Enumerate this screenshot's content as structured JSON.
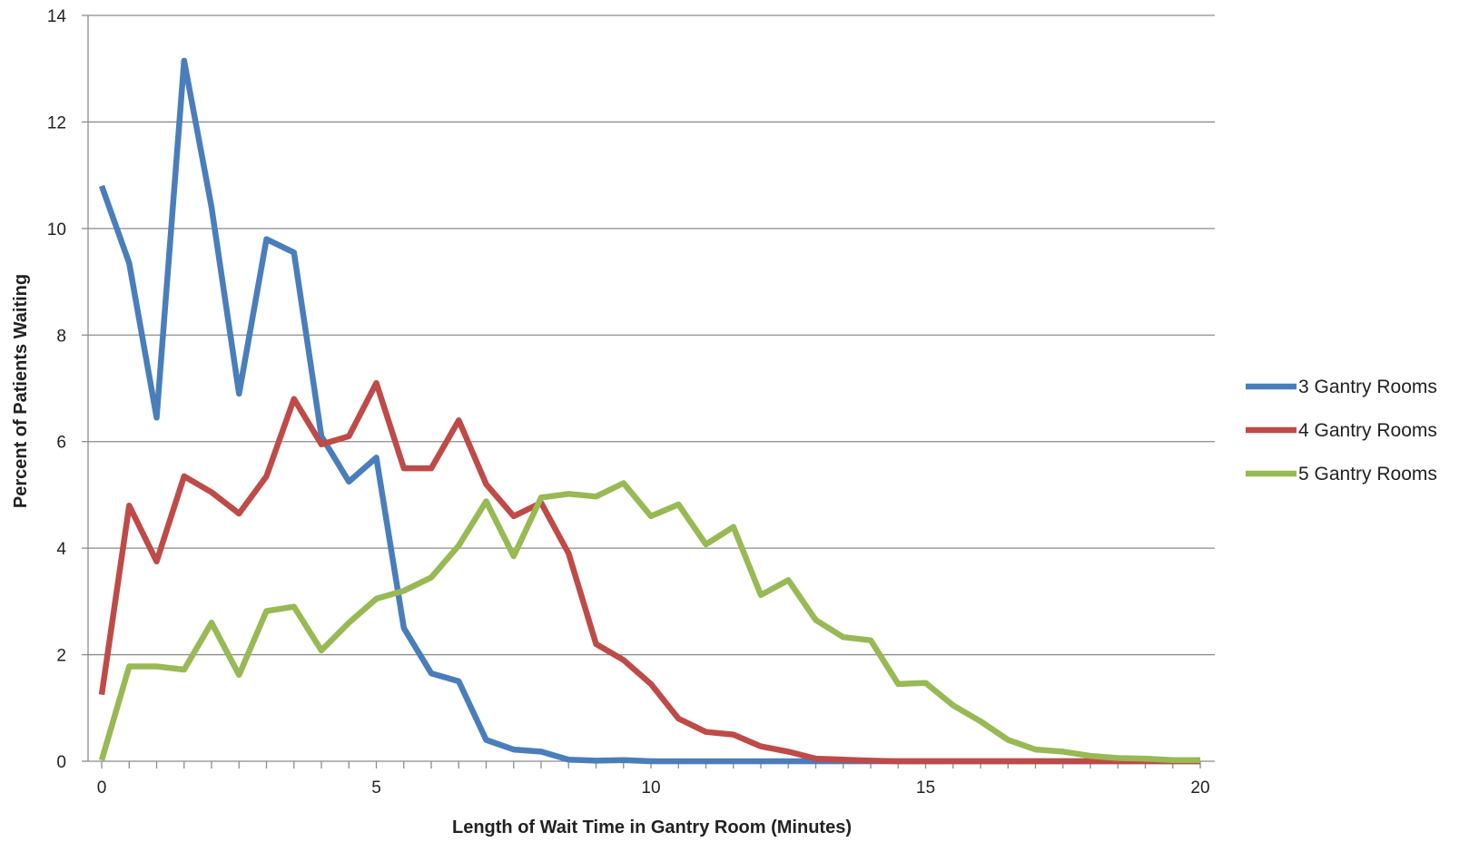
{
  "chart_data": {
    "type": "line",
    "title": "",
    "xlabel": "Length of Wait Time in Gantry Room (Minutes)",
    "ylabel": "Percent of Patients Waiting",
    "xlim": [
      0,
      20
    ],
    "ylim": [
      0,
      14
    ],
    "x_ticks": [
      "0",
      "5",
      "10",
      "15",
      "20"
    ],
    "y_ticks": [
      "0",
      "2",
      "4",
      "6",
      "8",
      "10",
      "12",
      "14"
    ],
    "grid": "horizontal",
    "legend_position": "right",
    "x": [
      0,
      0.5,
      1,
      1.5,
      2,
      2.5,
      3,
      3.5,
      4,
      4.5,
      5,
      5.5,
      6,
      6.5,
      7,
      7.5,
      8,
      8.5,
      9,
      9.5,
      10,
      10.5,
      11,
      11.5,
      12,
      12.5,
      13,
      13.5,
      14,
      14.5,
      15,
      15.5,
      16,
      16.5,
      17,
      17.5,
      18,
      18.5,
      19,
      19.5,
      20
    ],
    "series": [
      {
        "name": "3 Gantry Rooms",
        "color": "#4a7ebb",
        "values": [
          10.8,
          9.35,
          6.45,
          13.15,
          10.4,
          6.9,
          9.8,
          9.55,
          6.1,
          5.25,
          5.7,
          2.5,
          1.65,
          1.5,
          0.4,
          0.22,
          0.18,
          0.03,
          0.01,
          0.02,
          0,
          0,
          0,
          0,
          0,
          0,
          0,
          0,
          0,
          0,
          0,
          0,
          0,
          0,
          0,
          0,
          0,
          0,
          0,
          0,
          0
        ]
      },
      {
        "name": "4 Gantry Rooms",
        "color": "#be4b48",
        "values": [
          1.25,
          4.8,
          3.75,
          5.35,
          5.05,
          4.65,
          5.35,
          6.8,
          5.95,
          6.1,
          7.1,
          5.5,
          5.5,
          6.4,
          5.2,
          4.6,
          4.85,
          3.9,
          2.2,
          1.9,
          1.45,
          0.8,
          0.55,
          0.5,
          0.28,
          0.18,
          0.05,
          0.03,
          0.01,
          0,
          0,
          0,
          0,
          0,
          0,
          0,
          0,
          0,
          0,
          0,
          0
        ]
      },
      {
        "name": "5 Gantry Rooms",
        "color": "#98b954",
        "values": [
          0.02,
          1.78,
          1.78,
          1.72,
          2.6,
          1.62,
          2.82,
          2.9,
          2.08,
          2.6,
          3.05,
          3.2,
          3.45,
          4.05,
          4.88,
          3.85,
          4.95,
          5.02,
          4.97,
          5.22,
          4.6,
          4.82,
          4.07,
          4.4,
          3.12,
          3.4,
          2.65,
          2.33,
          2.27,
          1.45,
          1.47,
          1.05,
          0.75,
          0.4,
          0.22,
          0.18,
          0.1,
          0.06,
          0.05,
          0.02,
          0.02
        ]
      }
    ]
  }
}
